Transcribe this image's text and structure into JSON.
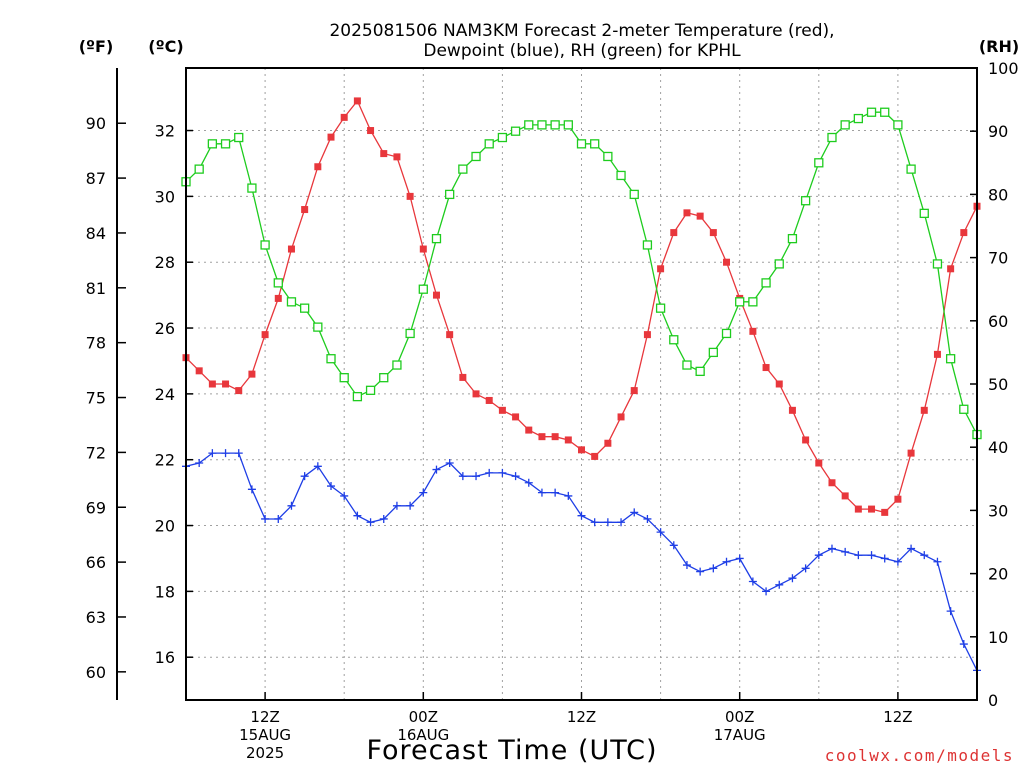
{
  "chart_data": {
    "type": "line",
    "title_line1": "2025081506 NAM3KM Forecast 2-meter Temperature (red),",
    "title_line2": "Dewpoint (blue), RH (green) for KPHL",
    "xlabel": "Forecast Time (UTC)",
    "watermark": "coolwx.com/models",
    "unit_f": "(ºF)",
    "unit_c": "(ºC)",
    "unit_rh": "(RH)",
    "x_ticks": [
      {
        "hour": 6,
        "lines": [
          "12Z",
          "15AUG",
          "2025"
        ]
      },
      {
        "hour": 18,
        "lines": [
          "00Z",
          "16AUG"
        ]
      },
      {
        "hour": 30,
        "lines": [
          "12Z"
        ]
      },
      {
        "hour": 42,
        "lines": [
          "00Z",
          "17AUG"
        ]
      },
      {
        "hour": 54,
        "lines": [
          "12Z"
        ]
      }
    ],
    "x_grid_hours": [
      6,
      12,
      18,
      24,
      30,
      36,
      42,
      48,
      54
    ],
    "xlim_hours": [
      0,
      60
    ],
    "ylim_c": [
      14.7,
      33.9
    ],
    "ylim_rh": [
      0,
      100
    ],
    "f_ticks": [
      "60",
      "63",
      "66",
      "69",
      "72",
      "75",
      "78",
      "81",
      "84",
      "87",
      "90"
    ],
    "c_ticks": [
      "16",
      "18",
      "20",
      "22",
      "24",
      "26",
      "28",
      "30",
      "32"
    ],
    "rh_ticks": [
      "0",
      "10",
      "20",
      "30",
      "40",
      "50",
      "60",
      "70",
      "80",
      "90",
      "100"
    ],
    "colors": {
      "temperature": "#e8373c",
      "dewpoint": "#1e3ee6",
      "rh": "#1ecc1e",
      "grid": "#a0a0a0",
      "watermark": "#dd3333"
    },
    "series": [
      {
        "name": "Temperature",
        "unit": "C",
        "marker": "filled-square",
        "color": "#e8373c",
        "values": [
          25.1,
          24.7,
          24.3,
          24.3,
          24.1,
          24.6,
          25.8,
          26.9,
          28.4,
          29.6,
          30.9,
          31.8,
          32.4,
          32.9,
          32.0,
          31.3,
          31.2,
          30.0,
          28.4,
          27.0,
          25.8,
          24.5,
          24.0,
          23.8,
          23.5,
          23.3,
          22.9,
          22.7,
          22.7,
          22.6,
          22.3,
          22.1,
          22.5,
          23.3,
          24.1,
          25.8,
          27.8,
          28.9,
          29.5,
          29.4,
          28.9,
          28.0,
          26.9,
          25.9,
          24.8,
          24.3,
          23.5,
          22.6,
          21.9,
          21.3,
          20.9,
          20.5,
          20.5,
          20.4,
          20.8,
          22.2,
          23.5,
          25.2,
          27.8,
          28.9,
          29.7
        ]
      },
      {
        "name": "Dewpoint",
        "unit": "C",
        "marker": "plus",
        "color": "#1e3ee6",
        "values": [
          21.8,
          21.9,
          22.2,
          22.2,
          22.2,
          21.1,
          20.2,
          20.2,
          20.6,
          21.5,
          21.8,
          21.2,
          20.9,
          20.3,
          20.1,
          20.2,
          20.6,
          20.6,
          21.0,
          21.7,
          21.9,
          21.5,
          21.5,
          21.6,
          21.6,
          21.5,
          21.3,
          21.0,
          21.0,
          20.9,
          20.3,
          20.1,
          20.1,
          20.1,
          20.4,
          20.2,
          19.8,
          19.4,
          18.8,
          18.6,
          18.7,
          18.9,
          19.0,
          18.3,
          18.0,
          18.2,
          18.4,
          18.7,
          19.1,
          19.3,
          19.2,
          19.1,
          19.1,
          19.0,
          18.9,
          19.3,
          19.1,
          18.9,
          17.4,
          16.4,
          15.6
        ]
      },
      {
        "name": "RH",
        "unit": "%",
        "marker": "open-square",
        "color": "#1ecc1e",
        "values": [
          82,
          84,
          88,
          88,
          89,
          81,
          72,
          66,
          63,
          62,
          59,
          54,
          51,
          48,
          49,
          51,
          53,
          58,
          65,
          73,
          80,
          84,
          86,
          88,
          89,
          90,
          91,
          91,
          91,
          91,
          88,
          88,
          86,
          83,
          80,
          72,
          62,
          57,
          53,
          52,
          55,
          58,
          63,
          63,
          66,
          69,
          73,
          79,
          85,
          89,
          91,
          92,
          93,
          93,
          91,
          84,
          77,
          69,
          54,
          46,
          42
        ]
      }
    ]
  }
}
